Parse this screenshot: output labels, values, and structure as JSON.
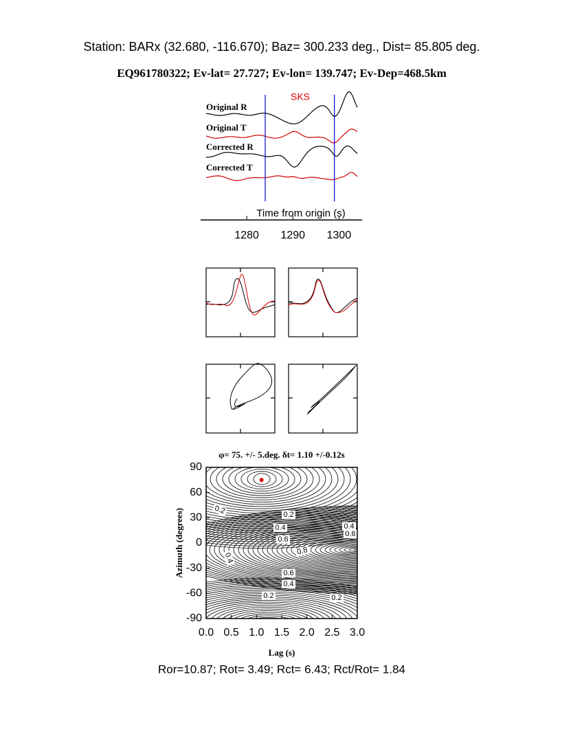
{
  "header": {
    "station": "Station: BARx (32.680, -116.670); Baz=  300.233 deg., Dist=   85.805 deg.",
    "event": "EQ961780322; Ev-lat=  27.727; Ev-lon= 139.747; Ev-Dep=468.5km"
  },
  "chart_data": [
    {
      "type": "waveform",
      "phase": "SKS",
      "phase_color": "#e00000",
      "traces": [
        "Original R",
        "Original T",
        "Corrected R",
        "Corrected T"
      ],
      "trace_colors": [
        "#000000",
        "#d00000",
        "#000000",
        "#d00000"
      ],
      "window": [
        1284,
        1299
      ],
      "window_color": "#0000cc",
      "xlabel": "Time from origin (s)",
      "xlim": [
        1270,
        1305
      ],
      "xticks": [
        1280,
        1290,
        1300
      ]
    },
    {
      "type": "contour",
      "title": "φ= 75. +/- 5.deg. δt= 1.10 +/-0.12s",
      "xlabel": "Lag (s)",
      "ylabel": "Azimuth (degrees)",
      "xlim": [
        0,
        3
      ],
      "ylim": [
        -90,
        90
      ],
      "xticks": [
        {
          "value": 0,
          "label": "0.0"
        },
        {
          "value": 0.5,
          "label": "0.5"
        },
        {
          "value": 1,
          "label": "1.0"
        },
        {
          "value": 1.5,
          "label": "1.5"
        },
        {
          "value": 2,
          "label": "2.0"
        },
        {
          "value": 2.5,
          "label": "2.5"
        },
        {
          "value": 3,
          "label": "3.0"
        }
      ],
      "yticks": [
        -90,
        -60,
        -30,
        0,
        30,
        60,
        90
      ],
      "best": {
        "x": 1.1,
        "y": 75,
        "color": "#e00000"
      },
      "contour_labels": [
        0.2,
        0.2,
        0.4,
        0.6,
        0.8,
        0.4,
        0.6,
        0.4,
        0.4,
        0.6,
        0.2,
        0.2
      ]
    }
  ],
  "footer": "Ror=10.87; Rot= 3.49; Rct= 6.43; Rct/Rot= 1.84"
}
